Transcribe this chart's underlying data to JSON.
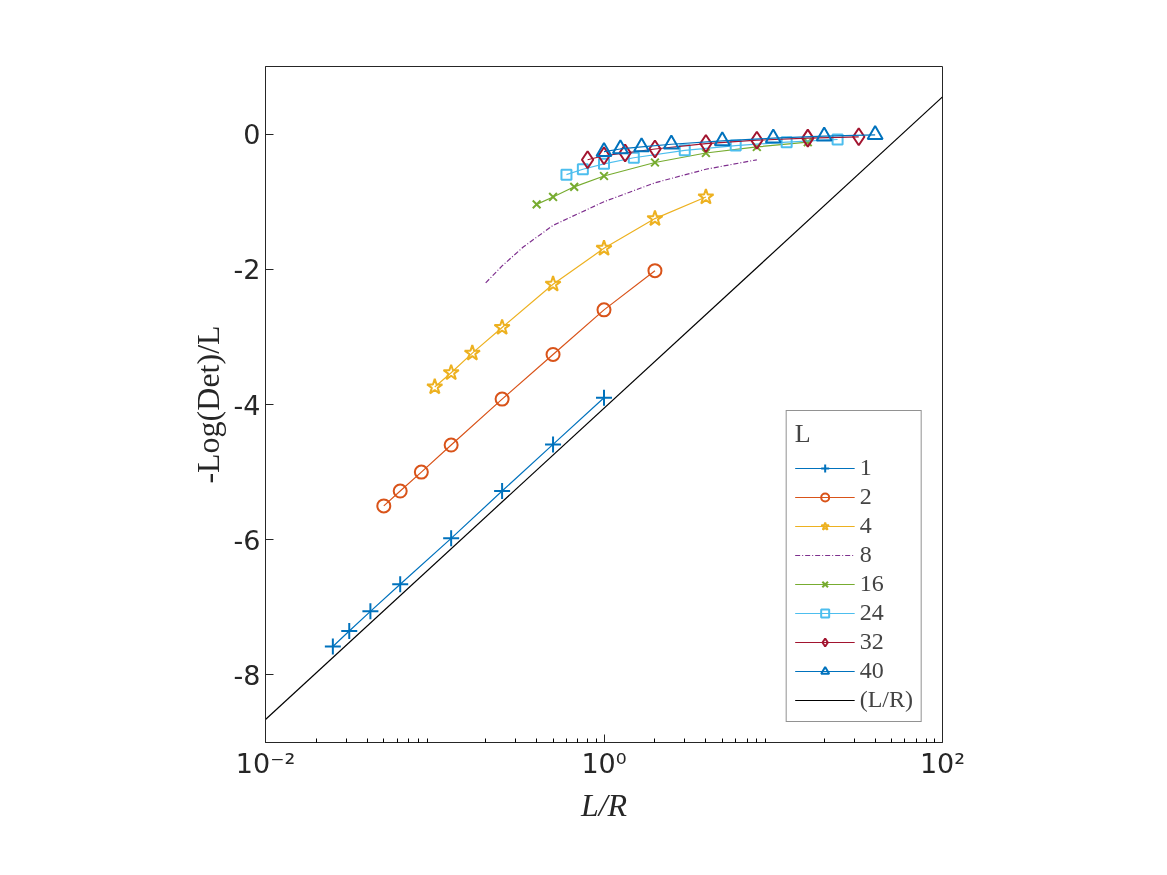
{
  "chart_data": {
    "type": "line",
    "xlabel": "L/R",
    "ylabel": "-Log(Det)/L",
    "legend_title": "L",
    "legend": "bottom right",
    "grid": false,
    "log": "x",
    "xlim": [
      0.01,
      100
    ],
    "xticks": [
      {
        "value": 0.01,
        "label": "10⁻²"
      },
      {
        "value": 1,
        "label": "10⁰"
      },
      {
        "value": 100,
        "label": "10²"
      }
    ],
    "ylim": [
      -9,
      1
    ],
    "yticks": [
      0,
      -2,
      -4,
      -6,
      -8
    ],
    "series": [
      {
        "name": "1",
        "color": "#0072bd",
        "marker": "cross",
        "x": [
          0.025,
          0.03125,
          0.04167,
          0.0625,
          0.125,
          0.25,
          0.5,
          1
        ],
        "values": [
          -7.58,
          -7.35,
          -7.06,
          -6.66,
          -5.98,
          -5.28,
          -4.59,
          -3.9
        ]
      },
      {
        "name": "2",
        "color": "#d95319",
        "marker": "circle",
        "x": [
          0.05,
          0.0625,
          0.08333,
          0.125,
          0.25,
          0.5,
          1,
          2
        ],
        "values": [
          -5.5,
          -5.28,
          -5.0,
          -4.6,
          -3.92,
          -3.26,
          -2.6,
          -2.02
        ]
      },
      {
        "name": "4",
        "color": "#edb120",
        "marker": "star",
        "x": [
          0.1,
          0.125,
          0.1667,
          0.25,
          0.5,
          1,
          2,
          4
        ],
        "values": [
          -3.74,
          -3.53,
          -3.24,
          -2.86,
          -2.22,
          -1.69,
          -1.25,
          -0.93
        ]
      },
      {
        "name": "8",
        "color": "#7e2f8e",
        "marker": "none",
        "line_style": "dashdot",
        "x": [
          0.2,
          0.25,
          0.3333,
          0.5,
          1,
          2,
          4,
          8
        ],
        "values": [
          -2.2,
          -1.95,
          -1.67,
          -1.35,
          -1.0,
          -0.72,
          -0.52,
          -0.38
        ]
      },
      {
        "name": "16",
        "color": "#77ac30",
        "marker": "x",
        "x": [
          0.4,
          0.5,
          0.6667,
          1,
          2,
          4,
          8,
          16
        ],
        "values": [
          -1.04,
          -0.93,
          -0.78,
          -0.62,
          -0.42,
          -0.28,
          -0.19,
          -0.12
        ]
      },
      {
        "name": "24",
        "color": "#4dbeee",
        "marker": "square",
        "x": [
          0.6,
          0.75,
          1,
          1.5,
          3,
          6,
          12,
          24
        ],
        "values": [
          -0.6,
          -0.52,
          -0.44,
          -0.35,
          -0.24,
          -0.17,
          -0.12,
          -0.08
        ]
      },
      {
        "name": "32",
        "color": "#a2142f",
        "marker": "diamond",
        "x": [
          0.8,
          1,
          1.333,
          2,
          4,
          8,
          16,
          32
        ],
        "values": [
          -0.38,
          -0.32,
          -0.28,
          -0.22,
          -0.14,
          -0.09,
          -0.06,
          -0.04
        ]
      },
      {
        "name": "40",
        "color": "#0072bd",
        "marker": "triangle",
        "x": [
          1,
          1.25,
          1.667,
          2.5,
          5,
          10,
          20,
          40
        ],
        "values": [
          -0.26,
          -0.22,
          -0.19,
          -0.15,
          -0.1,
          -0.06,
          -0.03,
          -0.01
        ]
      },
      {
        "name": "(L/R)",
        "color": "#000000",
        "marker": "none",
        "x": [
          0.01,
          100
        ],
        "values": [
          -8.66,
          0.55
        ]
      }
    ]
  }
}
